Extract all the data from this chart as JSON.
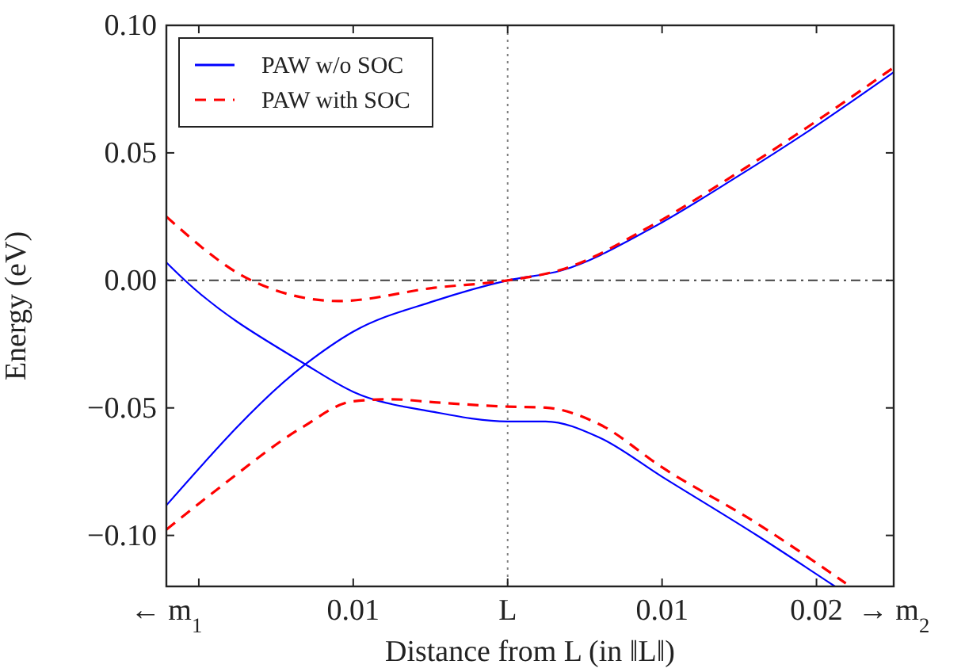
{
  "chart_data": {
    "type": "line",
    "xlabel": "Distance from L (in ‖L‖)",
    "ylabel": "Energy (eV)",
    "xlim": [
      -0.0221,
      0.025
    ],
    "annotations": [
      "← m$_{1}$",
      "→ m$_{2}$"
    ],
    "xticks": [
      {
        "value": -0.02,
        "label": null
      },
      {
        "value": -0.01,
        "label": "0.01"
      },
      {
        "value": 0,
        "label": "L"
      },
      {
        "value": 0.01,
        "label": "0.01"
      },
      {
        "value": 0.02,
        "label": "0.02"
      }
    ],
    "ylim": [
      -0.12,
      0.1
    ],
    "yticks": [
      {
        "value": -0.1,
        "label": "−0.10"
      },
      {
        "value": -0.05,
        "label": "−0.05"
      },
      {
        "value": 0,
        "label": "0.00"
      },
      {
        "value": 0.05,
        "label": "0.05"
      },
      {
        "value": 0.1,
        "label": "0.10"
      }
    ],
    "legend": "top left",
    "grid": false,
    "ref_lines": [
      {
        "axis": "x",
        "value": 0,
        "line_style": "dotted",
        "color": "#808080"
      },
      {
        "axis": "y",
        "value": 0,
        "line_style": "dashdot",
        "color": "#404040"
      }
    ],
    "series": [
      {
        "name": "PAW w/o SOC",
        "color": "#0000ff",
        "line_style": "solid",
        "x": [
          -0.0221,
          -0.0131,
          -0.01,
          -0.00476,
          0,
          0.00349,
          0.00933,
          0.01485,
          0.01964,
          0.025
        ],
        "values": [
          -0.0882,
          -0.0329,
          -0.0201,
          -0.0081,
          0,
          0.0039,
          0.0205,
          0.0406,
          0.0592,
          0.0816
        ]
      },
      {
        "color": "#0000ff",
        "line_style": "solid",
        "x": [
          -0.0221,
          -0.0209,
          -0.0131,
          -0.01,
          -0.00476,
          0,
          0.00246,
          0.0059,
          0.01,
          0.0162,
          0.0212
        ],
        "values": [
          0.007,
          0,
          -0.0329,
          -0.0437,
          -0.0516,
          -0.0553,
          -0.0553,
          -0.0615,
          -0.077,
          -0.1002,
          -0.12
        ]
      },
      {
        "name": "PAW with SOC",
        "color": "#ff0000",
        "line_style": "dashed",
        "x": [
          -0.0221,
          -0.0166,
          -0.01095,
          -0.00476,
          0,
          0.00349,
          0.00933,
          0.01485,
          0.01964,
          0.025
        ],
        "values": [
          0.025,
          0,
          -0.0081,
          -0.0029,
          0,
          0.0042,
          0.0215,
          0.042,
          0.061,
          0.0835
        ]
      },
      {
        "color": "#ff0000",
        "line_style": "dashed",
        "x": [
          -0.0221,
          -0.0185,
          -0.01335,
          -0.01,
          -0.0075,
          -0.00476,
          0,
          0.00246,
          0.0059,
          0.01,
          0.0162,
          0.0219
        ],
        "values": [
          -0.0977,
          -0.0805,
          -0.0578,
          -0.0474,
          -0.0466,
          -0.0478,
          -0.0495,
          -0.0499,
          -0.0563,
          -0.0733,
          -0.0955,
          -0.1188
        ]
      }
    ]
  }
}
